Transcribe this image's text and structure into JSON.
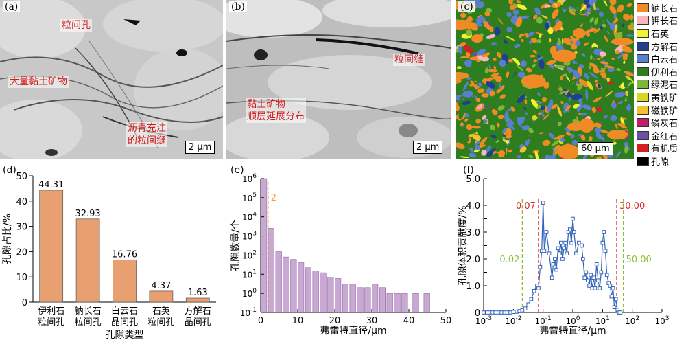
{
  "panels": {
    "a": {
      "label": "(a)",
      "annotations": [
        "粒间孔",
        "大量黏土矿物",
        "沥青充注\n的粒间缝"
      ],
      "scale": "2 μm"
    },
    "b": {
      "label": "(b)",
      "annotations": [
        "粒间缝",
        "黏土矿物\n顺层延展分布"
      ],
      "scale": "2 μm"
    },
    "c": {
      "label": "(c)",
      "scale": "60 μm",
      "legend": [
        {
          "name": "钠长石",
          "color": "#f08a24"
        },
        {
          "name": "钾长石",
          "color": "#f7b6c2"
        },
        {
          "name": "石英",
          "color": "#f2f232"
        },
        {
          "name": "方解石",
          "color": "#1f3f8f"
        },
        {
          "name": "白云石",
          "color": "#5b7fcf"
        },
        {
          "name": "伊利石",
          "color": "#2e7d1f"
        },
        {
          "name": "绿泥石",
          "color": "#7bb83a"
        },
        {
          "name": "黄铁矿",
          "color": "#d8d820"
        },
        {
          "name": "磁铁矿",
          "color": "#f2c230"
        },
        {
          "name": "磷灰石",
          "color": "#c21e6b"
        },
        {
          "name": "金红石",
          "color": "#6a4fa3"
        },
        {
          "name": "有机质",
          "color": "#d42020"
        },
        {
          "name": "孔隙",
          "color": "#000000"
        }
      ]
    }
  },
  "chart_data": [
    {
      "panel": "(d)",
      "type": "bar",
      "categories": [
        "伊利石\n粒间孔",
        "钠长石\n粒间孔",
        "白云石\n晶间孔",
        "石英\n粒间孔",
        "方解石\n晶间孔"
      ],
      "values": [
        44.31,
        32.93,
        16.76,
        4.37,
        1.63
      ],
      "value_labels": [
        "44.31",
        "32.93",
        "16.76",
        "4.37",
        "1.63"
      ],
      "xlabel": "孔隙类型",
      "ylabel": "孔隙占比/%",
      "ylim": [
        0,
        50
      ],
      "yticks": [
        0,
        10,
        20,
        30,
        40,
        50
      ],
      "bar_color": "#e8a070"
    },
    {
      "panel": "(e)",
      "type": "bar",
      "x": [
        0,
        2,
        4,
        6,
        8,
        10,
        12,
        14,
        16,
        18,
        20,
        22,
        24,
        26,
        28,
        30,
        32,
        34,
        36,
        38,
        41,
        44
      ],
      "values": [
        1000000,
        2500,
        150,
        80,
        60,
        40,
        22,
        15,
        12,
        7,
        6,
        3,
        3,
        2,
        2,
        3,
        2,
        1,
        1,
        1,
        1,
        1
      ],
      "reference_line": {
        "x": 2,
        "label": "2",
        "color": "#e8a040"
      },
      "xlabel": "弗雷特直径/μm",
      "ylabel": "孔隙数量/个",
      "xlim": [
        0,
        50
      ],
      "xticks": [
        0,
        10,
        20,
        30,
        40,
        50
      ],
      "yscale": "log",
      "ylim": [
        0.1,
        1000000
      ],
      "ytick_exponents": [
        -1,
        0,
        1,
        2,
        3,
        4,
        5,
        6
      ],
      "bar_color": "#c9a8d4"
    },
    {
      "panel": "(f)",
      "type": "line",
      "x": [
        0.001,
        0.0013,
        0.0016,
        0.002,
        0.0025,
        0.0032,
        0.004,
        0.005,
        0.0063,
        0.008,
        0.01,
        0.013,
        0.016,
        0.02,
        0.025,
        0.032,
        0.04,
        0.05,
        0.063,
        0.07,
        0.08,
        0.09,
        0.1,
        0.11,
        0.13,
        0.16,
        0.2,
        0.22,
        0.25,
        0.28,
        0.32,
        0.36,
        0.4,
        0.45,
        0.5,
        0.56,
        0.63,
        0.71,
        0.8,
        0.9,
        1.0,
        1.1,
        1.3,
        1.6,
        2.0,
        2.2,
        2.5,
        2.8,
        3.2,
        3.6,
        4.0,
        4.5,
        5.0,
        5.6,
        6.3,
        7.1,
        8.0,
        9.0,
        10,
        11,
        12.5,
        14,
        16,
        18,
        20,
        22.5,
        25,
        28,
        32,
        36,
        40
      ],
      "values": [
        0,
        0,
        0,
        0,
        0,
        0,
        0,
        0,
        0,
        0,
        0.02,
        0.03,
        0.05,
        0.08,
        0.15,
        0.3,
        0.5,
        0.8,
        1.0,
        0.9,
        1.7,
        2.3,
        4.1,
        2.3,
        3.0,
        2.2,
        1.3,
        1.8,
        2.0,
        1.6,
        2.4,
        2.2,
        2.6,
        2.0,
        2.4,
        2.6,
        2.2,
        3.0,
        3.1,
        2.6,
        3.5,
        3.0,
        2.2,
        2.6,
        2.5,
        2.0,
        1.3,
        1.5,
        1.2,
        1.0,
        1.4,
        0.9,
        1.3,
        0.9,
        1.8,
        1.2,
        0.9,
        1.5,
        2.6,
        3.0,
        2.3,
        1.4,
        1.1,
        1.0,
        0.6,
        0.9,
        0.2,
        0.5,
        0.1,
        0,
        0
      ],
      "reference_lines": [
        {
          "x": 0.02,
          "label": "0.02",
          "color": "#8fbf3a"
        },
        {
          "x": 0.07,
          "label": "0.07",
          "color": "#d42a2a"
        },
        {
          "x": 30,
          "label": "30.00",
          "color": "#d42a2a"
        },
        {
          "x": 50,
          "label": "50.00",
          "color": "#8fbf3a"
        }
      ],
      "xlabel": "弗雷特直径/μm",
      "ylabel": "孔隙体积贡献度/%",
      "xscale": "log",
      "xlim": [
        0.001,
        1000
      ],
      "xtick_exponents": [
        -3,
        -2,
        -1,
        0,
        1,
        2,
        3
      ],
      "ylim": [
        0,
        5
      ],
      "yticks": [
        0,
        0.5,
        1.0,
        1.5,
        2.0,
        2.5,
        3.0,
        3.5,
        4.0,
        4.5,
        5.0
      ],
      "ytick_labels": [
        "0",
        "0.5",
        "1.0",
        "1.5",
        "2.0",
        "2.5",
        "3.0",
        "3.5",
        "4.0",
        "4.5",
        "5.0"
      ],
      "line_color": "#2f62b8"
    }
  ]
}
